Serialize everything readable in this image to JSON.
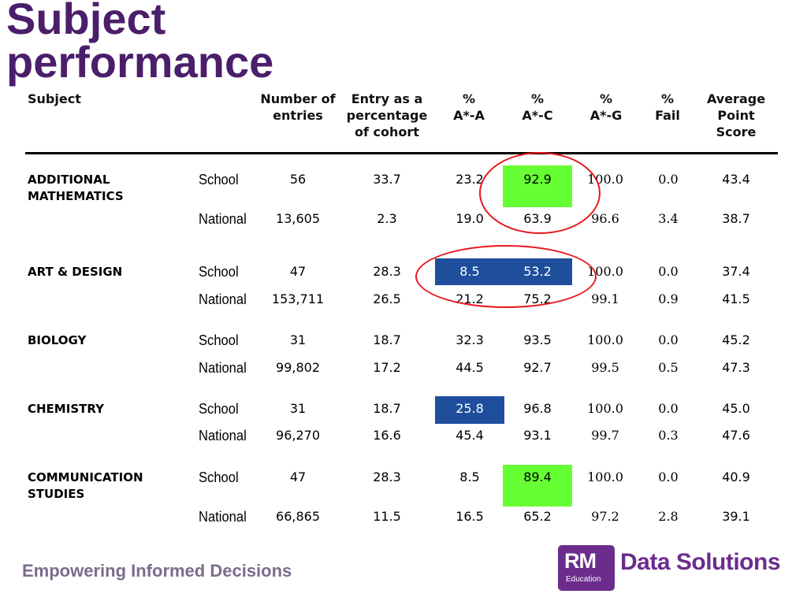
{
  "title": [
    "Subject",
    "performance"
  ],
  "headers": {
    "subject": "Subject",
    "entries": [
      "Number of",
      "entries"
    ],
    "entry_pct": [
      "Entry as a",
      "percentage",
      "of cohort"
    ],
    "pct_astar_a": [
      "%",
      "A*-A"
    ],
    "pct_astar_c": [
      "%",
      "A*-C"
    ],
    "pct_astar_g": [
      "%",
      "A*-G"
    ],
    "pct_fail": [
      "%",
      "Fail"
    ],
    "avg_point": [
      "Average",
      "Point",
      "Score"
    ]
  },
  "subjects": [
    {
      "name": [
        "ADDITIONAL",
        "MATHEMATICS"
      ],
      "rows": [
        {
          "level": "School",
          "entries": "56",
          "entry_pct": "33.7",
          "aa": "23.2",
          "ac": "92.9",
          "ag": "100.0",
          "fail": "0.0",
          "aps": "43.4"
        },
        {
          "level": "National",
          "entries": "13,605",
          "entry_pct": "2.3",
          "aa": "19.0",
          "ac": "63.9",
          "ag": "96.6",
          "fail": "3.4",
          "aps": "38.7"
        }
      ]
    },
    {
      "name": [
        "ART & DESIGN"
      ],
      "rows": [
        {
          "level": "School",
          "entries": "47",
          "entry_pct": "28.3",
          "aa": "8.5",
          "ac": "53.2",
          "ag": "100.0",
          "fail": "0.0",
          "aps": "37.4"
        },
        {
          "level": "National",
          "entries": "153,711",
          "entry_pct": "26.5",
          "aa": "21.2",
          "ac": "75.2",
          "ag": "99.1",
          "fail": "0.9",
          "aps": "41.5"
        }
      ]
    },
    {
      "name": [
        "BIOLOGY"
      ],
      "rows": [
        {
          "level": "School",
          "entries": "31",
          "entry_pct": "18.7",
          "aa": "32.3",
          "ac": "93.5",
          "ag": "100.0",
          "fail": "0.0",
          "aps": "45.2"
        },
        {
          "level": "National",
          "entries": "99,802",
          "entry_pct": "17.2",
          "aa": "44.5",
          "ac": "92.7",
          "ag": "99.5",
          "fail": "0.5",
          "aps": "47.3"
        }
      ]
    },
    {
      "name": [
        "CHEMISTRY"
      ],
      "rows": [
        {
          "level": "School",
          "entries": "31",
          "entry_pct": "18.7",
          "aa": "25.8",
          "ac": "96.8",
          "ag": "100.0",
          "fail": "0.0",
          "aps": "45.0"
        },
        {
          "level": "National",
          "entries": "96,270",
          "entry_pct": "16.6",
          "aa": "45.4",
          "ac": "93.1",
          "ag": "99.7",
          "fail": "0.3",
          "aps": "47.6"
        }
      ]
    },
    {
      "name": [
        "COMMUNICATION",
        "STUDIES"
      ],
      "rows": [
        {
          "level": "School",
          "entries": "47",
          "entry_pct": "28.3",
          "aa": "8.5",
          "ac": "89.4",
          "ag": "100.0",
          "fail": "0.0",
          "aps": "40.9"
        },
        {
          "level": "National",
          "entries": "66,865",
          "entry_pct": "11.5",
          "aa": "16.5",
          "ac": "65.2",
          "ag": "97.2",
          "fail": "2.8",
          "aps": "39.1"
        }
      ]
    }
  ],
  "colors": {
    "title": "#4b1e6b",
    "highlight_green": "#66ff33",
    "highlight_blue": "#1f4e9c",
    "annotation_red": "#e8161b",
    "brand": "#6b2c8c"
  },
  "footer": {
    "tagline": "Empowering Informed Decisions"
  },
  "logo": {
    "mark": "RM",
    "sub": "Education",
    "name": "Data Solutions"
  }
}
